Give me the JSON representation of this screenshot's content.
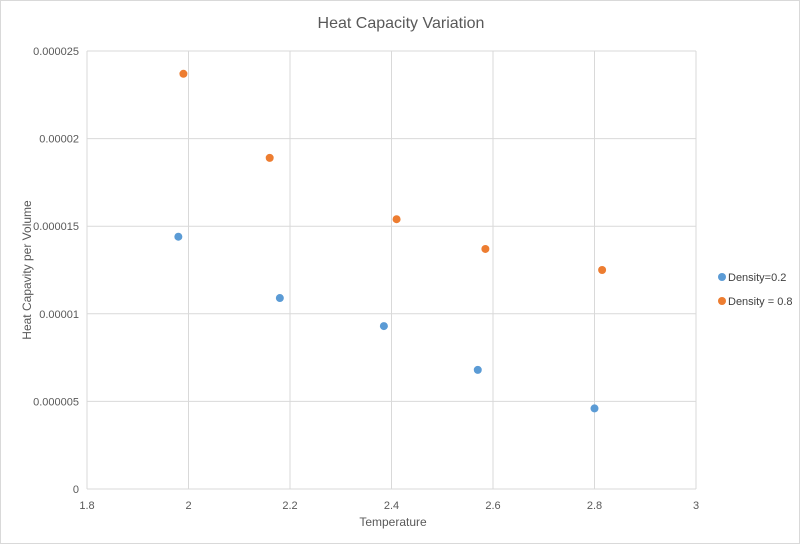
{
  "chart_data": {
    "type": "scatter",
    "title": "Heat Capacity Variation",
    "xlabel": "Temperature",
    "ylabel": "Heat Capavity per Volume",
    "xlim": [
      1.8,
      3
    ],
    "ylim": [
      0,
      2.5e-05
    ],
    "xticks": [
      "1.8",
      "2",
      "2.2",
      "2.4",
      "2.6",
      "2.8",
      "3"
    ],
    "yticks": [
      "0",
      "0.000005",
      "0.00001",
      "0.000015",
      "0.00002",
      "0.000025"
    ],
    "grid": true,
    "legend_position": "right",
    "series": [
      {
        "name": "Density=0.2",
        "color": "#5b9bd5",
        "x": [
          1.98,
          2.18,
          2.385,
          2.57,
          2.8
        ],
        "y": [
          1.44e-05,
          1.09e-05,
          9.3e-06,
          6.8e-06,
          4.6e-06
        ]
      },
      {
        "name": "Density = 0.8",
        "color": "#ed7d31",
        "x": [
          1.99,
          2.16,
          2.41,
          2.585,
          2.815
        ],
        "y": [
          2.37e-05,
          1.89e-05,
          1.54e-05,
          1.37e-05,
          1.25e-05
        ]
      }
    ]
  }
}
